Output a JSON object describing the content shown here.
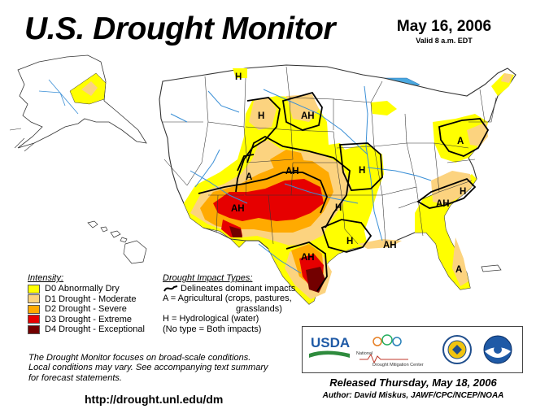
{
  "header": {
    "title": "U.S. Drought Monitor",
    "date": "May 16, 2006",
    "valid": "Valid 8 a.m. EDT"
  },
  "legend": {
    "heading": "Intensity:",
    "items": [
      {
        "label": "D0 Abnormally Dry",
        "color": "#ffff00"
      },
      {
        "label": "D1 Drought - Moderate",
        "color": "#fcd37f"
      },
      {
        "label": "D2 Drought - Severe",
        "color": "#ffaa00"
      },
      {
        "label": "D3 Drought - Extreme",
        "color": "#e60000"
      },
      {
        "label": "D4 Drought - Exceptional",
        "color": "#730000"
      }
    ]
  },
  "impacts": {
    "heading": "Drought Impact Types:",
    "line1": "Delineates dominant impacts",
    "line2": "A = Agricultural (crops, pastures,",
    "line3": "grasslands)",
    "line4": "H = Hydrological (water)",
    "line5": "(No type = Both impacts)"
  },
  "map_labels": [
    "H",
    "H",
    "AH",
    "A",
    "AH",
    "H",
    "AH",
    "H",
    "H",
    "AH",
    "AH",
    "A",
    "AH",
    "H",
    "A"
  ],
  "note": {
    "line1": "The Drought Monitor focuses on broad-scale conditions.",
    "line2": "Local conditions may vary. See accompanying text summary",
    "line3": "for forecast statements."
  },
  "url": "http://drought.unl.edu/dm",
  "released": "Released Thursday, May 18, 2006",
  "author": "Author:  David Miskus, JAWF/CPC/NCEP/NOAA",
  "logos": {
    "usda": "USDA",
    "ndmc_line1": "National",
    "ndmc_line2": "Drought Mitigation Center"
  },
  "colors": {
    "water": "#4aa8e0",
    "rivers": "#3a8fd6",
    "land": "#ffffff",
    "borders": "#333333"
  }
}
